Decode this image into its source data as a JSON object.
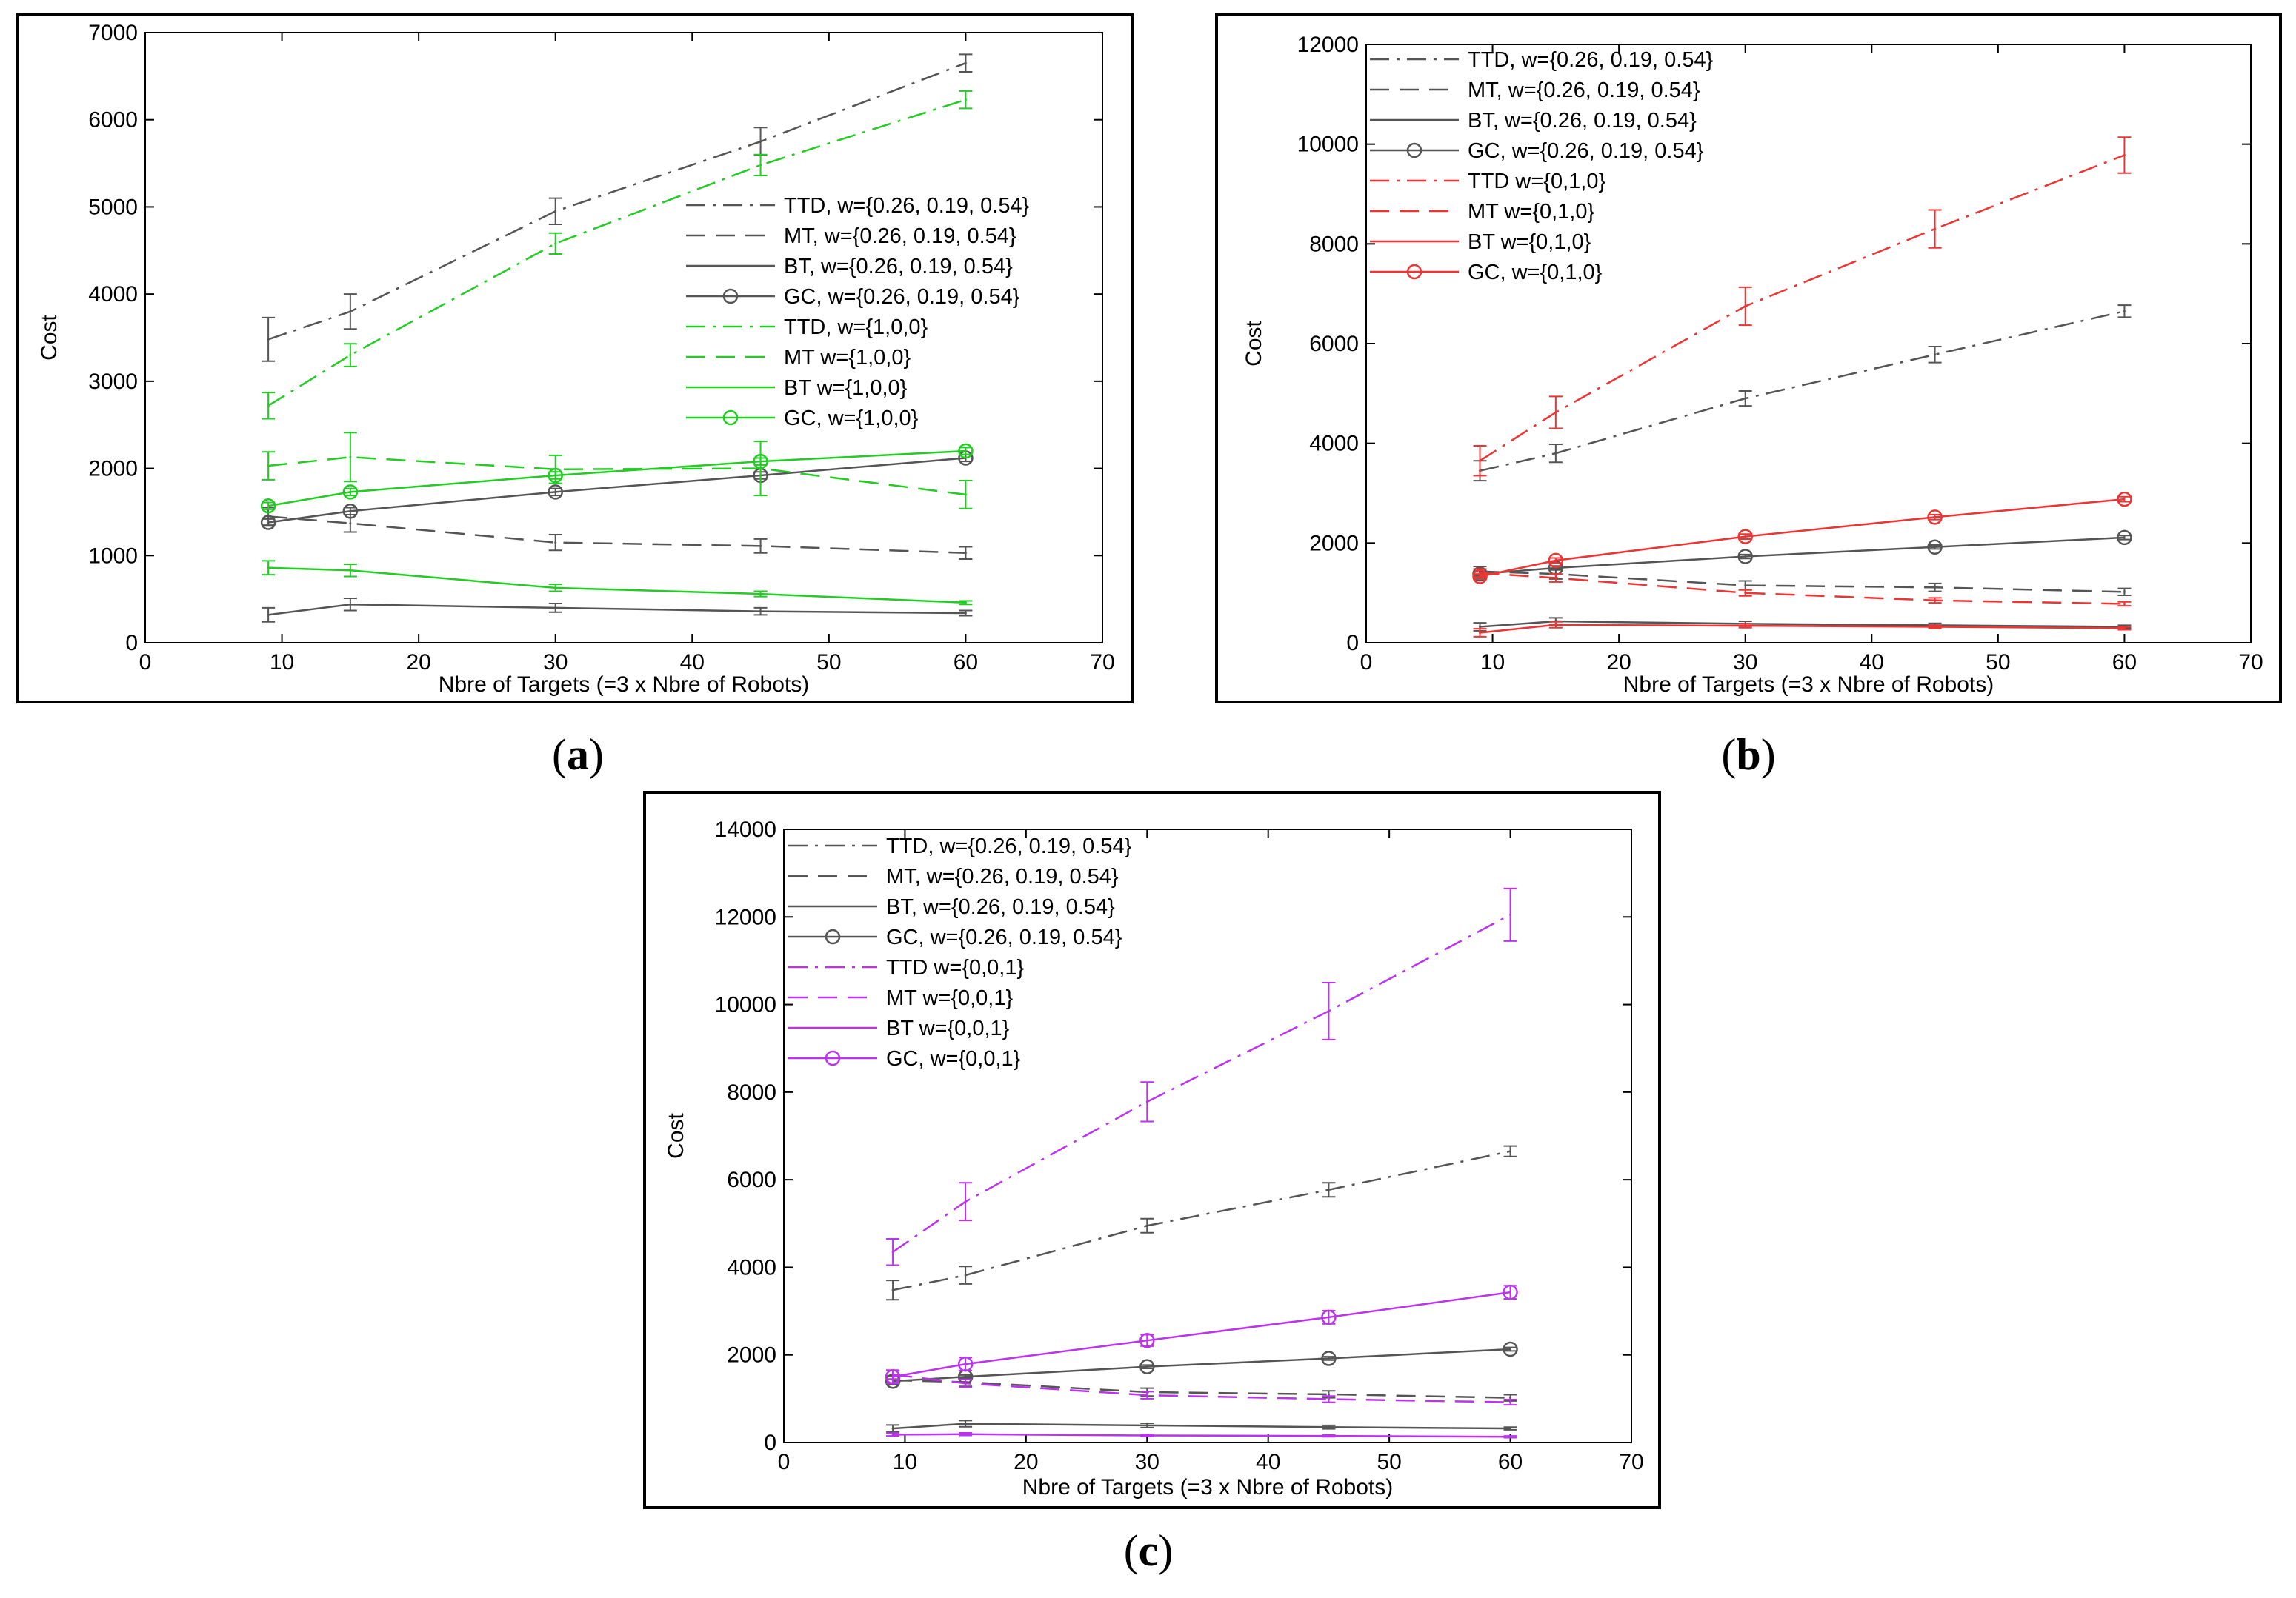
{
  "figure": {
    "captions": [
      {
        "open": "(",
        "letter": "a",
        "close": ")"
      },
      {
        "open": "(",
        "letter": "b",
        "close": ")"
      },
      {
        "open": "(",
        "letter": "c",
        "close": ")"
      }
    ]
  },
  "chart_data": [
    {
      "type": "line",
      "xlabel": "Nbre of Targets (=3 x Nbre of Robots)",
      "ylabel": "Cost",
      "xlim": [
        0,
        70
      ],
      "ylim": [
        0,
        7000
      ],
      "xticks": [
        0,
        10,
        20,
        30,
        40,
        50,
        60,
        70
      ],
      "yticks": [
        0,
        1000,
        2000,
        3000,
        4000,
        5000,
        6000,
        7000
      ],
      "legend_location": "middle-right",
      "series": [
        {
          "name": "TTD, w={0.26, 0.19, 0.54}",
          "color": "#555555",
          "style": "dashdot",
          "x": [
            9,
            15,
            30,
            45,
            60
          ],
          "y": [
            3480,
            3800,
            4950,
            5750,
            6650
          ],
          "err": [
            250,
            200,
            150,
            160,
            100
          ]
        },
        {
          "name": "MT, w={0.26, 0.19, 0.54}",
          "color": "#555555",
          "style": "dashed",
          "x": [
            9,
            15,
            30,
            45,
            60
          ],
          "y": [
            1450,
            1370,
            1150,
            1110,
            1030
          ],
          "err": [
            100,
            100,
            90,
            80,
            70
          ]
        },
        {
          "name": "BT, w={0.26, 0.19, 0.54}",
          "color": "#555555",
          "style": "solid",
          "x": [
            9,
            15,
            30,
            45,
            60
          ],
          "y": [
            320,
            440,
            400,
            360,
            340
          ],
          "err": [
            80,
            70,
            50,
            40,
            30
          ]
        },
        {
          "name": "GC, w={0.26, 0.19, 0.54}",
          "color": "#555555",
          "style": "solid",
          "marker": "circle",
          "x": [
            9,
            15,
            30,
            45,
            60
          ],
          "y": [
            1380,
            1510,
            1730,
            1920,
            2120
          ],
          "err": [
            40,
            40,
            40,
            40,
            40
          ]
        },
        {
          "name": "TTD, w={1,0,0}",
          "color": "#22cc22",
          "style": "dashdot",
          "x": [
            9,
            15,
            30,
            45,
            60
          ],
          "y": [
            2720,
            3300,
            4580,
            5480,
            6230
          ],
          "err": [
            150,
            130,
            120,
            120,
            100
          ]
        },
        {
          "name": "MT w={1,0,0}",
          "color": "#22cc22",
          "style": "dashed",
          "x": [
            9,
            15,
            30,
            45,
            60
          ],
          "y": [
            2030,
            2130,
            1990,
            2000,
            1700
          ],
          "err": [
            160,
            280,
            160,
            310,
            160
          ]
        },
        {
          "name": "BT w={1,0,0}",
          "color": "#22cc22",
          "style": "solid",
          "x": [
            9,
            15,
            30,
            45,
            60
          ],
          "y": [
            860,
            830,
            630,
            560,
            460
          ],
          "err": [
            80,
            70,
            40,
            30,
            20
          ]
        },
        {
          "name": "GC, w={1,0,0}",
          "color": "#22cc22",
          "style": "solid",
          "marker": "circle",
          "x": [
            9,
            15,
            30,
            45,
            60
          ],
          "y": [
            1570,
            1730,
            1920,
            2080,
            2200
          ],
          "err": [
            40,
            40,
            40,
            40,
            40
          ]
        }
      ]
    },
    {
      "type": "line",
      "xlabel": "Nbre of Targets (=3 x Nbre of Robots)",
      "ylabel": "Cost",
      "xlim": [
        0,
        70
      ],
      "ylim": [
        0,
        12000
      ],
      "xticks": [
        0,
        10,
        20,
        30,
        40,
        50,
        60,
        70
      ],
      "yticks": [
        0,
        2000,
        4000,
        6000,
        8000,
        10000,
        12000
      ],
      "legend_location": "top-left",
      "series": [
        {
          "name": "TTD, w={0.26, 0.19, 0.54}",
          "color": "#555555",
          "style": "dashdot",
          "x": [
            9,
            15,
            30,
            45,
            60
          ],
          "y": [
            3450,
            3800,
            4900,
            5780,
            6650
          ],
          "err": [
            200,
            180,
            150,
            160,
            120
          ]
        },
        {
          "name": "MT, w={0.26, 0.19, 0.54}",
          "color": "#555555",
          "style": "dashed",
          "x": [
            9,
            15,
            30,
            45,
            60
          ],
          "y": [
            1430,
            1380,
            1150,
            1110,
            1020
          ],
          "err": [
            100,
            100,
            90,
            80,
            70
          ]
        },
        {
          "name": "BT, w={0.26, 0.19, 0.54}",
          "color": "#555555",
          "style": "solid",
          "x": [
            9,
            15,
            30,
            45,
            60
          ],
          "y": [
            320,
            430,
            380,
            350,
            320
          ],
          "err": [
            80,
            70,
            50,
            40,
            30
          ]
        },
        {
          "name": "GC, w={0.26, 0.19, 0.54}",
          "color": "#555555",
          "style": "solid",
          "marker": "circle",
          "x": [
            9,
            15,
            30,
            45,
            60
          ],
          "y": [
            1380,
            1500,
            1730,
            1920,
            2110
          ],
          "err": [
            40,
            40,
            40,
            40,
            40
          ]
        },
        {
          "name": "TTD w={0,1,0}",
          "color": "#ee3333",
          "style": "dashdot",
          "x": [
            9,
            15,
            30,
            45,
            60
          ],
          "y": [
            3650,
            4620,
            6750,
            8300,
            9780
          ],
          "err": [
            300,
            320,
            380,
            380,
            360
          ]
        },
        {
          "name": "MT w={0,1,0}",
          "color": "#ee3333",
          "style": "dashed",
          "x": [
            9,
            15,
            30,
            45,
            60
          ],
          "y": [
            1400,
            1300,
            1000,
            850,
            780
          ],
          "err": [
            80,
            80,
            60,
            50,
            40
          ]
        },
        {
          "name": "BT w={0,1,0}",
          "color": "#ee3333",
          "style": "solid",
          "x": [
            9,
            15,
            30,
            45,
            60
          ],
          "y": [
            200,
            360,
            340,
            320,
            290
          ],
          "err": [
            80,
            60,
            40,
            30,
            30
          ]
        },
        {
          "name": "GC, w={0,1,0}",
          "color": "#ee3333",
          "style": "solid",
          "marker": "circle",
          "x": [
            9,
            15,
            30,
            45,
            60
          ],
          "y": [
            1330,
            1650,
            2130,
            2520,
            2880
          ],
          "err": [
            50,
            50,
            50,
            50,
            50
          ]
        }
      ]
    },
    {
      "type": "line",
      "xlabel": "Nbre of Targets (=3 x Nbre of Robots)",
      "ylabel": "Cost",
      "xlim": [
        0,
        70
      ],
      "ylim": [
        0,
        14000
      ],
      "xticks": [
        0,
        10,
        20,
        30,
        40,
        50,
        60,
        70
      ],
      "yticks": [
        0,
        2000,
        4000,
        6000,
        8000,
        10000,
        12000,
        14000
      ],
      "legend_location": "top-left",
      "series": [
        {
          "name": "TTD, w={0.26, 0.19, 0.54}",
          "color": "#555555",
          "style": "dashdot",
          "x": [
            9,
            15,
            30,
            45,
            60
          ],
          "y": [
            3480,
            3820,
            4950,
            5770,
            6650
          ],
          "err": [
            220,
            200,
            160,
            160,
            120
          ]
        },
        {
          "name": "MT, w={0.26, 0.19, 0.54}",
          "color": "#555555",
          "style": "dashed",
          "x": [
            9,
            15,
            30,
            45,
            60
          ],
          "y": [
            1420,
            1380,
            1150,
            1100,
            1020
          ],
          "err": [
            100,
            100,
            90,
            80,
            70
          ]
        },
        {
          "name": "BT, w={0.26, 0.19, 0.54}",
          "color": "#555555",
          "style": "solid",
          "x": [
            9,
            15,
            30,
            45,
            60
          ],
          "y": [
            320,
            430,
            390,
            350,
            320
          ],
          "err": [
            80,
            70,
            50,
            40,
            30
          ]
        },
        {
          "name": "GC, w={0.26, 0.19, 0.54}",
          "color": "#555555",
          "style": "solid",
          "marker": "circle",
          "x": [
            9,
            15,
            30,
            45,
            60
          ],
          "y": [
            1400,
            1500,
            1730,
            1920,
            2130
          ],
          "err": [
            40,
            40,
            40,
            40,
            40
          ]
        },
        {
          "name": "TTD w={0,0,1}",
          "color": "#bb33ee",
          "style": "dashdot",
          "x": [
            9,
            15,
            30,
            45,
            60
          ],
          "y": [
            4350,
            5500,
            7780,
            9850,
            12050
          ],
          "err": [
            300,
            430,
            450,
            650,
            600
          ]
        },
        {
          "name": "MT w={0,0,1}",
          "color": "#bb33ee",
          "style": "dashed",
          "x": [
            9,
            15,
            30,
            45,
            60
          ],
          "y": [
            1550,
            1350,
            1080,
            990,
            920
          ],
          "err": [
            100,
            90,
            80,
            70,
            60
          ]
        },
        {
          "name": "BT w={0,0,1}",
          "color": "#bb33ee",
          "style": "solid",
          "x": [
            9,
            15,
            30,
            45,
            60
          ],
          "y": [
            180,
            190,
            160,
            150,
            130
          ],
          "err": [
            30,
            30,
            20,
            20,
            20
          ]
        },
        {
          "name": "GC, w={0,0,1}",
          "color": "#bb33ee",
          "style": "solid",
          "marker": "circle",
          "x": [
            9,
            15,
            30,
            45,
            60
          ],
          "y": [
            1500,
            1790,
            2330,
            2860,
            3430
          ],
          "err": [
            150,
            150,
            130,
            150,
            150
          ]
        }
      ]
    }
  ]
}
